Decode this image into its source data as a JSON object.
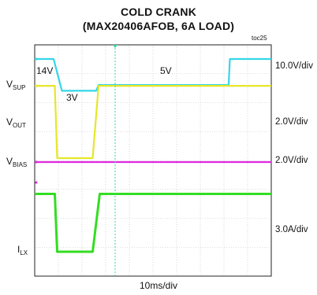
{
  "chart_data": {
    "type": "line",
    "title": "COLD CRANK",
    "subtitle": "(MAX20406AFOB, 6A LOAD)",
    "figure_tag": "toc25",
    "xlabel": "10ms/div",
    "grid": true,
    "x_unit": "ms",
    "xlim": [
      0,
      100
    ],
    "series": [
      {
        "name": "SUP",
        "label_main": "V",
        "label_sub": "SUP",
        "scale": "10.0V/div",
        "color": "#33d6e8",
        "unit": "V",
        "x": [
          0,
          8,
          11.5,
          26,
          27,
          100,
          100.1,
          82,
          82.5,
          100
        ],
        "values": [
          14,
          14,
          3,
          3,
          5,
          5,
          5,
          5,
          14,
          14
        ],
        "annotations": [
          {
            "text": "14V"
          },
          {
            "text": "3V"
          },
          {
            "text": "5V"
          }
        ]
      },
      {
        "name": "OUT",
        "label_main": "V",
        "label_sub": "OUT",
        "scale": "2.0V/div",
        "color": "#e6e62a",
        "unit": "V",
        "x": [
          0,
          8.5,
          9.5,
          24.5,
          27,
          100
        ],
        "values": [
          5,
          5,
          0,
          0,
          5,
          5
        ]
      },
      {
        "name": "BIAS",
        "label_main": "V",
        "label_sub": "BIAS",
        "scale": "2.0V/div",
        "color": "#e028e0",
        "unit": "V",
        "x": [
          0,
          100
        ],
        "values": [
          5,
          5
        ]
      },
      {
        "name": "LX",
        "label_main": "I",
        "label_sub": "LX",
        "scale": "3.0A/div",
        "color": "#33dd22",
        "unit": "A",
        "x": [
          0,
          8.5,
          9.5,
          24.5,
          27.5,
          100
        ],
        "values": [
          6,
          6,
          0,
          0,
          6,
          6
        ]
      }
    ]
  }
}
